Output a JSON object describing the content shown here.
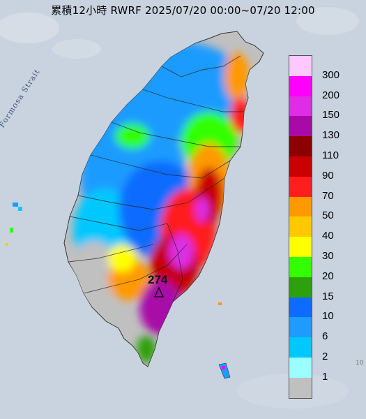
{
  "title": "累積12小時 RWRF 2025/07/20 00:00~07/20 12:00",
  "strait_label": "Formosa Strait",
  "max_station": {
    "value": "274",
    "marker": "triangle-marker"
  },
  "corner_tick": "10",
  "legend": {
    "unit_labels": [
      "300",
      "200",
      "150",
      "130",
      "110",
      "90",
      "70",
      "50",
      "40",
      "30",
      "20",
      "15",
      "10",
      "6",
      "2",
      "1"
    ],
    "colors": [
      "#ffc8ff",
      "#ff00ff",
      "#dd2de6",
      "#a80aa8",
      "#8c0000",
      "#c80000",
      "#ff1e1e",
      "#ff9900",
      "#ffc800",
      "#ffff00",
      "#33ff00",
      "#2ea00b",
      "#0d6cff",
      "#1e9bff",
      "#00c8ff",
      "#9bffff",
      "#c0c0c0"
    ]
  },
  "colors": {
    "sea": "#c9d3df",
    "land_base": "#c0c0c0",
    "border": "#222222"
  }
}
